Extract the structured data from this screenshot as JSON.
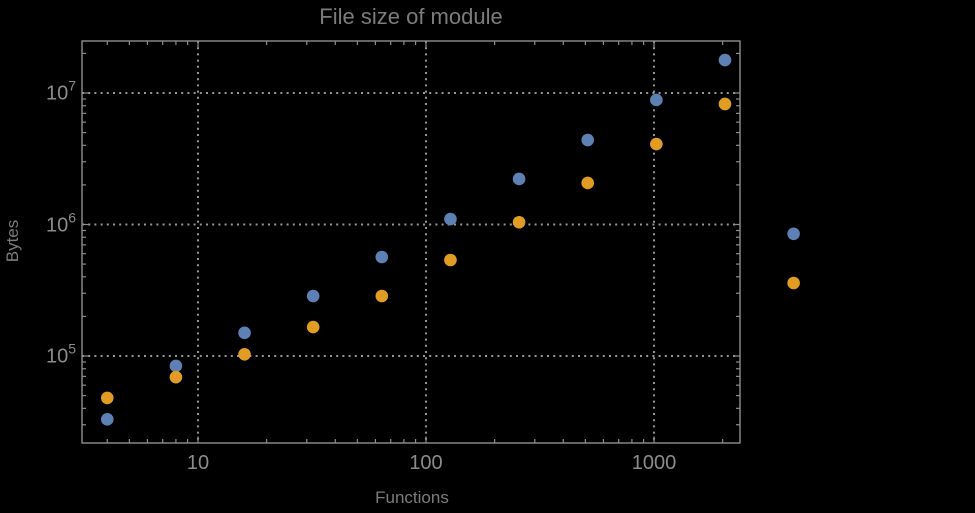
{
  "title": "File size of module",
  "colors": {
    "background": "#000000",
    "frame": "#8e8e8e",
    "grid": "#979797",
    "text": "#8c8c8c",
    "series_blue": "#5e81b5",
    "series_orange": "#e19c24"
  },
  "chart_data": {
    "type": "scatter",
    "title": "File size of module",
    "xlabel": "Functions",
    "ylabel": "Bytes",
    "x_scale": "log",
    "y_scale": "log",
    "grid": "dotted decade gridlines",
    "legend": "none",
    "xlim": [
      3.1,
      2400
    ],
    "ylim": [
      22000,
      25000000
    ],
    "x_tick_labels": [
      "10",
      "100",
      "1000"
    ],
    "x_tick_values": [
      10,
      100,
      1000
    ],
    "y_tick_base": "10",
    "y_tick_exponents": [
      5,
      6,
      7
    ],
    "series": [
      {
        "name": "blue",
        "color": "#5e81b5",
        "points": [
          [
            4,
            33000
          ],
          [
            8,
            84000
          ],
          [
            16,
            150000
          ],
          [
            32,
            286000
          ],
          [
            64,
            566000
          ],
          [
            128,
            1100000
          ],
          [
            256,
            2220000
          ],
          [
            512,
            4390000
          ],
          [
            1024,
            8850000
          ],
          [
            2048,
            17800000
          ],
          [
            4096,
            850000
          ]
        ]
      },
      {
        "name": "orange",
        "color": "#e19c24",
        "points": [
          [
            4,
            48000
          ],
          [
            8,
            69000
          ],
          [
            16,
            103000
          ],
          [
            32,
            166000
          ],
          [
            64,
            286000
          ],
          [
            128,
            537000
          ],
          [
            256,
            1040000
          ],
          [
            512,
            2070000
          ],
          [
            1024,
            4090000
          ],
          [
            2048,
            8250000
          ],
          [
            4096,
            359000
          ]
        ]
      }
    ]
  }
}
